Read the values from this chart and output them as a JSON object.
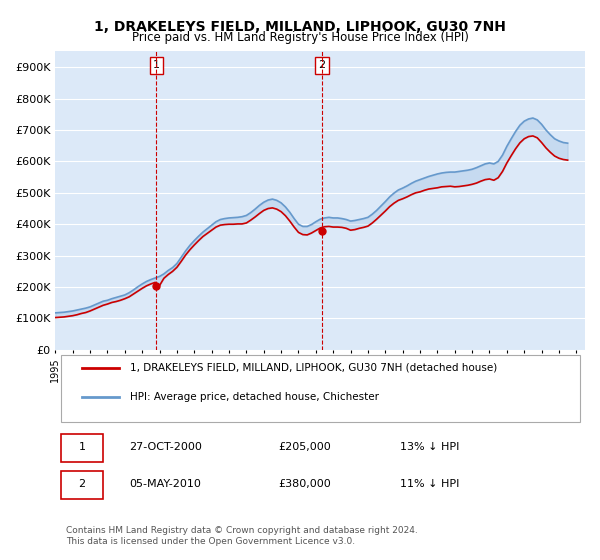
{
  "title": "1, DRAKELEYS FIELD, MILLAND, LIPHOOK, GU30 7NH",
  "subtitle": "Price paid vs. HM Land Registry's House Price Index (HPI)",
  "ylabel_format": "£{0}K",
  "yticks": [
    0,
    100000,
    200000,
    300000,
    400000,
    500000,
    600000,
    700000,
    800000,
    900000
  ],
  "ytick_labels": [
    "£0",
    "£100K",
    "£200K",
    "£300K",
    "£400K",
    "£500K",
    "£600K",
    "£700K",
    "£800K",
    "£900K"
  ],
  "ylim": [
    0,
    950000
  ],
  "xlim_start": 1995.0,
  "xlim_end": 2025.5,
  "sale1_x": 2000.82,
  "sale1_y": 205000,
  "sale1_label": "1",
  "sale1_date": "27-OCT-2000",
  "sale1_price": "£205,000",
  "sale1_pct": "13% ↓ HPI",
  "sale2_x": 2010.35,
  "sale2_y": 380000,
  "sale2_label": "2",
  "sale2_date": "05-MAY-2010",
  "sale2_price": "£380,000",
  "sale2_pct": "11% ↓ HPI",
  "bg_color": "#dce9f8",
  "plot_bg": "#dce9f8",
  "line1_color": "#cc0000",
  "line2_color": "#6699cc",
  "vline_color": "#cc0000",
  "marker_color": "#cc0000",
  "grid_color": "#ffffff",
  "legend1_label": "1, DRAKELEYS FIELD, MILLAND, LIPHOOK, GU30 7NH (detached house)",
  "legend2_label": "HPI: Average price, detached house, Chichester",
  "footnote": "Contains HM Land Registry data © Crown copyright and database right 2024.\nThis data is licensed under the Open Government Licence v3.0.",
  "hpi_data_x": [
    1995.0,
    1995.25,
    1995.5,
    1995.75,
    1996.0,
    1996.25,
    1996.5,
    1996.75,
    1997.0,
    1997.25,
    1997.5,
    1997.75,
    1998.0,
    1998.25,
    1998.5,
    1998.75,
    1999.0,
    1999.25,
    1999.5,
    1999.75,
    2000.0,
    2000.25,
    2000.5,
    2000.75,
    2001.0,
    2001.25,
    2001.5,
    2001.75,
    2002.0,
    2002.25,
    2002.5,
    2002.75,
    2003.0,
    2003.25,
    2003.5,
    2003.75,
    2004.0,
    2004.25,
    2004.5,
    2004.75,
    2005.0,
    2005.25,
    2005.5,
    2005.75,
    2006.0,
    2006.25,
    2006.5,
    2006.75,
    2007.0,
    2007.25,
    2007.5,
    2007.75,
    2008.0,
    2008.25,
    2008.5,
    2008.75,
    2009.0,
    2009.25,
    2009.5,
    2009.75,
    2010.0,
    2010.25,
    2010.5,
    2010.75,
    2011.0,
    2011.25,
    2011.5,
    2011.75,
    2012.0,
    2012.25,
    2012.5,
    2012.75,
    2013.0,
    2013.25,
    2013.5,
    2013.75,
    2014.0,
    2014.25,
    2014.5,
    2014.75,
    2015.0,
    2015.25,
    2015.5,
    2015.75,
    2016.0,
    2016.25,
    2016.5,
    2016.75,
    2017.0,
    2017.25,
    2017.5,
    2017.75,
    2018.0,
    2018.25,
    2018.5,
    2018.75,
    2019.0,
    2019.25,
    2019.5,
    2019.75,
    2020.0,
    2020.25,
    2020.5,
    2020.75,
    2021.0,
    2021.25,
    2021.5,
    2021.75,
    2022.0,
    2022.25,
    2022.5,
    2022.75,
    2023.0,
    2023.25,
    2023.5,
    2023.75,
    2024.0,
    2024.25,
    2024.5
  ],
  "hpi_data_y": [
    118000,
    119000,
    120000,
    122000,
    124000,
    127000,
    130000,
    133000,
    137000,
    143000,
    149000,
    155000,
    158000,
    163000,
    167000,
    171000,
    175000,
    182000,
    191000,
    201000,
    210000,
    218000,
    224000,
    229000,
    234000,
    242000,
    253000,
    262000,
    275000,
    295000,
    315000,
    333000,
    348000,
    362000,
    375000,
    386000,
    397000,
    408000,
    415000,
    418000,
    420000,
    421000,
    422000,
    424000,
    428000,
    437000,
    448000,
    460000,
    470000,
    477000,
    480000,
    476000,
    468000,
    455000,
    438000,
    418000,
    400000,
    393000,
    393000,
    399000,
    408000,
    416000,
    420000,
    422000,
    420000,
    420000,
    418000,
    415000,
    410000,
    412000,
    415000,
    418000,
    422000,
    432000,
    444000,
    458000,
    472000,
    487000,
    499000,
    509000,
    515000,
    522000,
    530000,
    537000,
    542000,
    547000,
    552000,
    556000,
    560000,
    563000,
    565000,
    566000,
    566000,
    568000,
    570000,
    572000,
    575000,
    580000,
    586000,
    592000,
    595000,
    592000,
    600000,
    620000,
    648000,
    672000,
    695000,
    715000,
    728000,
    735000,
    738000,
    732000,
    718000,
    700000,
    685000,
    672000,
    665000,
    660000,
    658000
  ],
  "price_data_x": [
    1995.0,
    1995.25,
    1995.5,
    1995.75,
    1996.0,
    1996.25,
    1996.5,
    1996.75,
    1997.0,
    1997.25,
    1997.5,
    1997.75,
    1998.0,
    1998.25,
    1998.5,
    1998.75,
    1999.0,
    1999.25,
    1999.5,
    1999.75,
    2000.0,
    2000.25,
    2000.5,
    2000.75,
    2001.0,
    2001.25,
    2001.5,
    2001.75,
    2002.0,
    2002.25,
    2002.5,
    2002.75,
    2003.0,
    2003.25,
    2003.5,
    2003.75,
    2004.0,
    2004.25,
    2004.5,
    2004.75,
    2005.0,
    2005.25,
    2005.5,
    2005.75,
    2006.0,
    2006.25,
    2006.5,
    2006.75,
    2007.0,
    2007.25,
    2007.5,
    2007.75,
    2008.0,
    2008.25,
    2008.5,
    2008.75,
    2009.0,
    2009.25,
    2009.5,
    2009.75,
    2010.0,
    2010.25,
    2010.5,
    2010.75,
    2011.0,
    2011.25,
    2011.5,
    2011.75,
    2012.0,
    2012.25,
    2012.5,
    2012.75,
    2013.0,
    2013.25,
    2013.5,
    2013.75,
    2014.0,
    2014.25,
    2014.5,
    2014.75,
    2015.0,
    2015.25,
    2015.5,
    2015.75,
    2016.0,
    2016.25,
    2016.5,
    2016.75,
    2017.0,
    2017.25,
    2017.5,
    2017.75,
    2018.0,
    2018.25,
    2018.5,
    2018.75,
    2019.0,
    2019.25,
    2019.5,
    2019.75,
    2020.0,
    2020.25,
    2020.5,
    2020.75,
    2021.0,
    2021.25,
    2021.5,
    2021.75,
    2022.0,
    2022.25,
    2022.5,
    2022.75,
    2023.0,
    2023.25,
    2023.5,
    2023.75,
    2024.0,
    2024.25,
    2024.5
  ],
  "price_data_y": [
    103000,
    104000,
    105000,
    107000,
    109000,
    112000,
    116000,
    119000,
    124000,
    130000,
    136000,
    142000,
    146000,
    151000,
    154000,
    158000,
    163000,
    169000,
    178000,
    187000,
    196000,
    204000,
    210000,
    215000,
    205000,
    228000,
    240000,
    250000,
    263000,
    282000,
    302000,
    319000,
    334000,
    348000,
    361000,
    371000,
    381000,
    391000,
    397000,
    399000,
    400000,
    400000,
    401000,
    401000,
    404000,
    413000,
    423000,
    434000,
    444000,
    450000,
    452000,
    448000,
    440000,
    427000,
    410000,
    391000,
    374000,
    367000,
    366000,
    372000,
    380000,
    388000,
    392000,
    393000,
    391000,
    391000,
    390000,
    387000,
    381000,
    383000,
    387000,
    390000,
    394000,
    404000,
    416000,
    429000,
    442000,
    456000,
    467000,
    476000,
    481000,
    487000,
    494000,
    500000,
    503000,
    508000,
    512000,
    514000,
    516000,
    519000,
    520000,
    521000,
    519000,
    520000,
    522000,
    524000,
    527000,
    531000,
    537000,
    542000,
    544000,
    540000,
    548000,
    568000,
    595000,
    618000,
    640000,
    659000,
    672000,
    679000,
    681000,
    675000,
    660000,
    643000,
    629000,
    617000,
    610000,
    606000,
    604000
  ]
}
